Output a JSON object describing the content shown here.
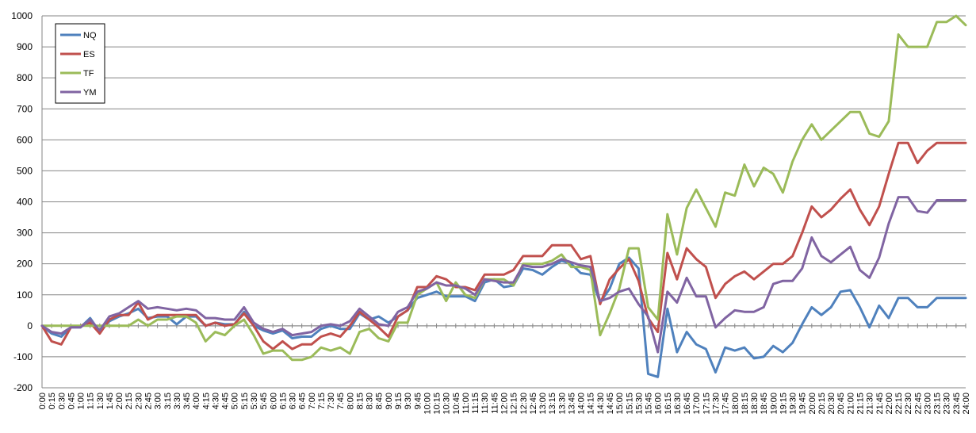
{
  "chart_data": {
    "type": "line",
    "ylim": [
      -200,
      1000
    ],
    "yticks": [
      -200,
      -100,
      0,
      100,
      200,
      300,
      400,
      500,
      600,
      700,
      800,
      900,
      1000
    ],
    "grid": true,
    "legend_position": "top-left",
    "x": [
      "0:00",
      "0:15",
      "0:30",
      "0:45",
      "1:00",
      "1:15",
      "1:30",
      "1:45",
      "2:00",
      "2:15",
      "2:30",
      "2:45",
      "3:00",
      "3:15",
      "3:30",
      "3:45",
      "4:00",
      "4:15",
      "4:30",
      "4:45",
      "5:00",
      "5:15",
      "5:30",
      "5:45",
      "6:00",
      "6:15",
      "6:30",
      "6:45",
      "7:00",
      "7:15",
      "7:30",
      "7:45",
      "8:00",
      "8:15",
      "8:30",
      "8:45",
      "9:00",
      "9:15",
      "9:30",
      "9:45",
      "10:00",
      "10:15",
      "10:30",
      "10:45",
      "11:00",
      "11:15",
      "11:30",
      "11:45",
      "12:00",
      "12:15",
      "12:30",
      "12:45",
      "13:00",
      "13:15",
      "13:30",
      "13:45",
      "14:00",
      "14:15",
      "14:30",
      "14:45",
      "15:00",
      "15:15",
      "15:30",
      "15:45",
      "16:00",
      "16:15",
      "16:30",
      "16:45",
      "17:00",
      "17:15",
      "17:30",
      "17:45",
      "18:00",
      "18:15",
      "18:30",
      "18:45",
      "19:00",
      "19:15",
      "19:30",
      "19:45",
      "20:00",
      "20:15",
      "20:30",
      "20:45",
      "21:00",
      "21:15",
      "21:30",
      "21:45",
      "22:00",
      "22:15",
      "22:30",
      "22:45",
      "23:00",
      "23:15",
      "23:30",
      "23:45",
      "24:00"
    ],
    "series": [
      {
        "name": "NQ",
        "color": "#4F81BD",
        "values": [
          0,
          -25,
          -35,
          -5,
          -5,
          25,
          -20,
          15,
          30,
          40,
          55,
          25,
          30,
          30,
          5,
          30,
          30,
          0,
          10,
          5,
          5,
          45,
          0,
          -15,
          -25,
          -15,
          -40,
          -35,
          -35,
          -10,
          0,
          -10,
          -10,
          40,
          20,
          30,
          10,
          30,
          50,
          90,
          100,
          110,
          95,
          95,
          95,
          80,
          140,
          150,
          125,
          130,
          185,
          180,
          165,
          190,
          210,
          200,
          170,
          165,
          75,
          120,
          200,
          220,
          185,
          -155,
          -165,
          55,
          -85,
          -20,
          -60,
          -75,
          -150,
          -70,
          -80,
          -70,
          -105,
          -100,
          -65,
          -85,
          -55,
          5,
          60,
          35,
          60,
          110,
          115,
          60,
          -5,
          65,
          25,
          90,
          90,
          60,
          60,
          90,
          90,
          90,
          90
        ]
      },
      {
        "name": "ES",
        "color": "#C0504D",
        "values": [
          0,
          -50,
          -60,
          -5,
          0,
          10,
          -25,
          20,
          35,
          35,
          75,
          20,
          35,
          35,
          35,
          35,
          35,
          0,
          10,
          0,
          5,
          40,
          0,
          -50,
          -75,
          -50,
          -75,
          -60,
          -60,
          -35,
          -25,
          -35,
          0,
          45,
          20,
          -5,
          -35,
          30,
          50,
          125,
          125,
          160,
          150,
          125,
          125,
          115,
          165,
          165,
          165,
          180,
          225,
          225,
          225,
          260,
          260,
          260,
          215,
          225,
          70,
          150,
          185,
          215,
          145,
          25,
          -20,
          235,
          150,
          250,
          215,
          190,
          90,
          135,
          160,
          175,
          150,
          175,
          200,
          200,
          225,
          300,
          385,
          350,
          375,
          410,
          440,
          375,
          325,
          385,
          490,
          590,
          590,
          525,
          565,
          590,
          590,
          590,
          590
        ]
      },
      {
        "name": "TF",
        "color": "#9BBB59",
        "values": [
          0,
          0,
          0,
          0,
          0,
          0,
          0,
          0,
          0,
          0,
          20,
          0,
          20,
          20,
          30,
          30,
          10,
          -50,
          -20,
          -30,
          0,
          20,
          -30,
          -90,
          -80,
          -80,
          -110,
          -110,
          -100,
          -70,
          -80,
          -70,
          -90,
          -20,
          -10,
          -40,
          -50,
          10,
          10,
          100,
          120,
          140,
          80,
          140,
          100,
          90,
          150,
          150,
          150,
          130,
          200,
          200,
          200,
          210,
          230,
          190,
          190,
          180,
          -30,
          40,
          120,
          250,
          250,
          60,
          20,
          360,
          230,
          380,
          440,
          380,
          320,
          430,
          420,
          520,
          450,
          510,
          490,
          430,
          530,
          600,
          650,
          600,
          630,
          660,
          690,
          690,
          620,
          610,
          660,
          940,
          900,
          900,
          900,
          980,
          980,
          1000,
          970
        ]
      },
      {
        "name": "YM",
        "color": "#8064A2",
        "values": [
          0,
          -20,
          -25,
          -5,
          -5,
          20,
          -15,
          30,
          40,
          60,
          80,
          55,
          60,
          55,
          50,
          55,
          50,
          25,
          25,
          20,
          20,
          60,
          10,
          -10,
          -20,
          -10,
          -30,
          -25,
          -20,
          0,
          5,
          0,
          15,
          55,
          30,
          5,
          0,
          45,
          60,
          110,
          120,
          140,
          130,
          130,
          120,
          100,
          150,
          145,
          140,
          140,
          195,
          190,
          190,
          200,
          215,
          205,
          195,
          190,
          80,
          90,
          110,
          120,
          70,
          30,
          -85,
          110,
          75,
          155,
          95,
          95,
          -5,
          25,
          50,
          45,
          45,
          60,
          135,
          145,
          145,
          185,
          285,
          225,
          205,
          230,
          255,
          180,
          155,
          220,
          330,
          415,
          415,
          370,
          365,
          405,
          405,
          405,
          405
        ]
      }
    ]
  }
}
